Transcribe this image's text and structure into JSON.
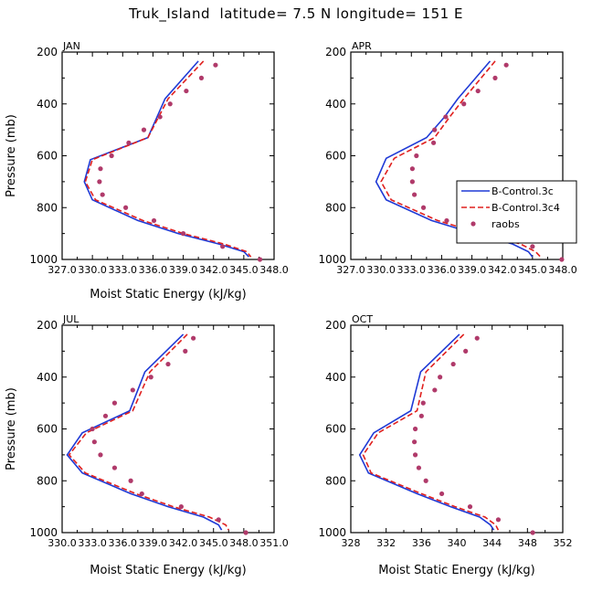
{
  "figure": {
    "title": "Truk_Island  latitude= 7.5 N longitude= 151 E"
  },
  "legend": {
    "placement": "inside APR panel, right",
    "entries": [
      {
        "label": "B-Control.3c",
        "style": "solid",
        "color": "#1f3ad6"
      },
      {
        "label": "B-Control.3c4",
        "style": "dashed",
        "color": "#e0201e"
      },
      {
        "label": "raobs",
        "style": "dots",
        "color": "#b03a6a"
      }
    ]
  },
  "chart_data": [
    {
      "type": "line",
      "panel": "JAN",
      "xlabel": "Moist Static Energy (kJ/kg)",
      "ylabel": "Pressure (mb)",
      "xlim": [
        327.0,
        348.0
      ],
      "xticks": [
        "327.0",
        "330.0",
        "333.0",
        "336.0",
        "339.0",
        "342.0",
        "345.0",
        "348.0"
      ],
      "ylim": [
        1000,
        200
      ],
      "yticks": [
        "200",
        "400",
        "600",
        "800",
        "1000"
      ],
      "series": [
        {
          "name": "B-Control.3c",
          "style": "solid",
          "color": "#1f3ad6",
          "points": [
            [
              340.5,
              235
            ],
            [
              337.2,
              380
            ],
            [
              335.5,
              530
            ],
            [
              329.8,
              615
            ],
            [
              329.2,
              700
            ],
            [
              330.0,
              770
            ],
            [
              334.5,
              850
            ],
            [
              338.5,
              900
            ],
            [
              342.5,
              940
            ],
            [
              345.0,
              970
            ],
            [
              345.5,
              990
            ]
          ]
        },
        {
          "name": "B-Control.3c4",
          "style": "dashed",
          "color": "#e0201e",
          "points": [
            [
              341.0,
              235
            ],
            [
              337.5,
              380
            ],
            [
              335.5,
              530
            ],
            [
              330.0,
              615
            ],
            [
              329.3,
              700
            ],
            [
              330.3,
              770
            ],
            [
              335.0,
              850
            ],
            [
              339.0,
              900
            ],
            [
              343.0,
              940
            ],
            [
              345.3,
              970
            ],
            [
              345.7,
              990
            ]
          ]
        },
        {
          "name": "raobs",
          "style": "dots",
          "color": "#b03a6a",
          "points": [
            [
              342.2,
              250
            ],
            [
              340.8,
              300
            ],
            [
              339.3,
              350
            ],
            [
              337.7,
              400
            ],
            [
              336.7,
              450
            ],
            [
              335.1,
              500
            ],
            [
              333.6,
              550
            ],
            [
              331.9,
              600
            ],
            [
              330.8,
              650
            ],
            [
              330.7,
              700
            ],
            [
              331.0,
              750
            ],
            [
              333.3,
              800
            ],
            [
              336.1,
              850
            ],
            [
              339.0,
              900
            ],
            [
              342.9,
              950
            ],
            [
              346.6,
              1000
            ]
          ]
        }
      ]
    },
    {
      "type": "line",
      "panel": "APR",
      "xlabel": "",
      "ylabel": "",
      "xlim": [
        327.0,
        348.0
      ],
      "xticks": [
        "327.0",
        "330.0",
        "333.0",
        "336.0",
        "339.0",
        "342.0",
        "345.0",
        "348.0"
      ],
      "ylim": [
        1000,
        200
      ],
      "yticks": [
        "200",
        "400",
        "600",
        "800",
        "1000"
      ],
      "series": [
        {
          "name": "B-Control.3c",
          "style": "solid",
          "color": "#1f3ad6",
          "points": [
            [
              340.8,
              235
            ],
            [
              337.6,
              380
            ],
            [
              336.3,
              450
            ],
            [
              334.5,
              530
            ],
            [
              330.5,
              610
            ],
            [
              329.5,
              700
            ],
            [
              330.5,
              770
            ],
            [
              335.0,
              850
            ],
            [
              339.2,
              900
            ],
            [
              343.0,
              940
            ],
            [
              344.6,
              970
            ],
            [
              345.0,
              990
            ]
          ]
        },
        {
          "name": "B-Control.3c4",
          "style": "dashed",
          "color": "#e0201e",
          "points": [
            [
              341.3,
              235
            ],
            [
              338.2,
              380
            ],
            [
              336.8,
              450
            ],
            [
              335.3,
              530
            ],
            [
              331.3,
              610
            ],
            [
              330.0,
              700
            ],
            [
              331.0,
              770
            ],
            [
              335.6,
              850
            ],
            [
              339.9,
              900
            ],
            [
              343.8,
              940
            ],
            [
              345.3,
              970
            ],
            [
              345.8,
              990
            ]
          ]
        },
        {
          "name": "raobs",
          "style": "dots",
          "color": "#b03a6a",
          "points": [
            [
              342.4,
              250
            ],
            [
              341.3,
              300
            ],
            [
              339.6,
              350
            ],
            [
              338.2,
              400
            ],
            [
              336.4,
              450
            ],
            [
              335.3,
              500
            ],
            [
              335.2,
              550
            ],
            [
              333.5,
              600
            ],
            [
              333.1,
              650
            ],
            [
              333.1,
              700
            ],
            [
              333.3,
              750
            ],
            [
              334.2,
              800
            ],
            [
              336.5,
              850
            ],
            [
              340.0,
              900
            ],
            [
              345.0,
              950
            ],
            [
              347.9,
              1000
            ]
          ]
        }
      ]
    },
    {
      "type": "line",
      "panel": "JUL",
      "xlabel": "Moist Static Energy (kJ/kg)",
      "ylabel": "Pressure (mb)",
      "xlim": [
        330.0,
        351.0
      ],
      "xticks": [
        "330.0",
        "333.0",
        "336.0",
        "339.0",
        "342.0",
        "345.0",
        "348.0",
        "351.0"
      ],
      "ylim": [
        1000,
        200
      ],
      "yticks": [
        "200",
        "400",
        "600",
        "800",
        "1000"
      ],
      "series": [
        {
          "name": "B-Control.3c",
          "style": "solid",
          "color": "#1f3ad6",
          "points": [
            [
              342.0,
              235
            ],
            [
              338.2,
              380
            ],
            [
              336.7,
              530
            ],
            [
              332.0,
              615
            ],
            [
              330.5,
              700
            ],
            [
              332.0,
              770
            ],
            [
              336.8,
              850
            ],
            [
              340.5,
              900
            ],
            [
              344.0,
              940
            ],
            [
              345.5,
              970
            ],
            [
              345.8,
              990
            ]
          ]
        },
        {
          "name": "B-Control.3c4",
          "style": "dashed",
          "color": "#e0201e",
          "points": [
            [
              342.4,
              235
            ],
            [
              338.7,
              380
            ],
            [
              337.0,
              530
            ],
            [
              332.4,
              615
            ],
            [
              330.7,
              700
            ],
            [
              332.3,
              770
            ],
            [
              337.3,
              850
            ],
            [
              341.0,
              900
            ],
            [
              344.6,
              940
            ],
            [
              346.2,
              970
            ],
            [
              346.5,
              990
            ]
          ]
        },
        {
          "name": "raobs",
          "style": "dots",
          "color": "#b03a6a",
          "points": [
            [
              343.0,
              250
            ],
            [
              342.2,
              300
            ],
            [
              340.5,
              350
            ],
            [
              338.8,
              400
            ],
            [
              337.0,
              450
            ],
            [
              335.2,
              500
            ],
            [
              334.3,
              550
            ],
            [
              333.0,
              600
            ],
            [
              333.2,
              650
            ],
            [
              333.8,
              700
            ],
            [
              335.2,
              750
            ],
            [
              336.8,
              800
            ],
            [
              337.9,
              850
            ],
            [
              341.8,
              900
            ],
            [
              345.5,
              950
            ],
            [
              348.2,
              1000
            ]
          ]
        }
      ]
    },
    {
      "type": "line",
      "panel": "OCT",
      "xlabel": "Moist Static Energy (kJ/kg)",
      "ylabel": "",
      "xlim": [
        328,
        352
      ],
      "xticks": [
        "328",
        "332",
        "336",
        "340",
        "344",
        "348",
        "352"
      ],
      "ylim": [
        1000,
        200
      ],
      "yticks": [
        "200",
        "400",
        "600",
        "800",
        "1000"
      ],
      "series": [
        {
          "name": "B-Control.3c",
          "style": "solid",
          "color": "#1f3ad6",
          "points": [
            [
              340.3,
              235
            ],
            [
              335.9,
              380
            ],
            [
              334.8,
              530
            ],
            [
              330.6,
              615
            ],
            [
              329.0,
              700
            ],
            [
              330.0,
              770
            ],
            [
              335.5,
              850
            ],
            [
              339.3,
              900
            ],
            [
              342.6,
              940
            ],
            [
              343.8,
              970
            ],
            [
              344.2,
              990
            ]
          ]
        },
        {
          "name": "B-Control.3c4",
          "style": "dashed",
          "color": "#e0201e",
          "points": [
            [
              340.8,
              235
            ],
            [
              336.5,
              380
            ],
            [
              335.5,
              530
            ],
            [
              331.1,
              615
            ],
            [
              329.4,
              700
            ],
            [
              330.3,
              770
            ],
            [
              336.0,
              850
            ],
            [
              339.8,
              900
            ],
            [
              343.2,
              940
            ],
            [
              344.4,
              970
            ],
            [
              344.7,
              990
            ]
          ]
        },
        {
          "name": "raobs",
          "style": "dots",
          "color": "#b03a6a",
          "points": [
            [
              342.3,
              250
            ],
            [
              341.0,
              300
            ],
            [
              339.6,
              350
            ],
            [
              338.1,
              400
            ],
            [
              337.5,
              450
            ],
            [
              336.2,
              500
            ],
            [
              336.0,
              550
            ],
            [
              335.3,
              600
            ],
            [
              335.2,
              650
            ],
            [
              335.3,
              700
            ],
            [
              335.7,
              750
            ],
            [
              336.5,
              800
            ],
            [
              338.3,
              850
            ],
            [
              341.5,
              900
            ],
            [
              344.7,
              950
            ],
            [
              348.6,
              1000
            ]
          ]
        }
      ]
    }
  ]
}
